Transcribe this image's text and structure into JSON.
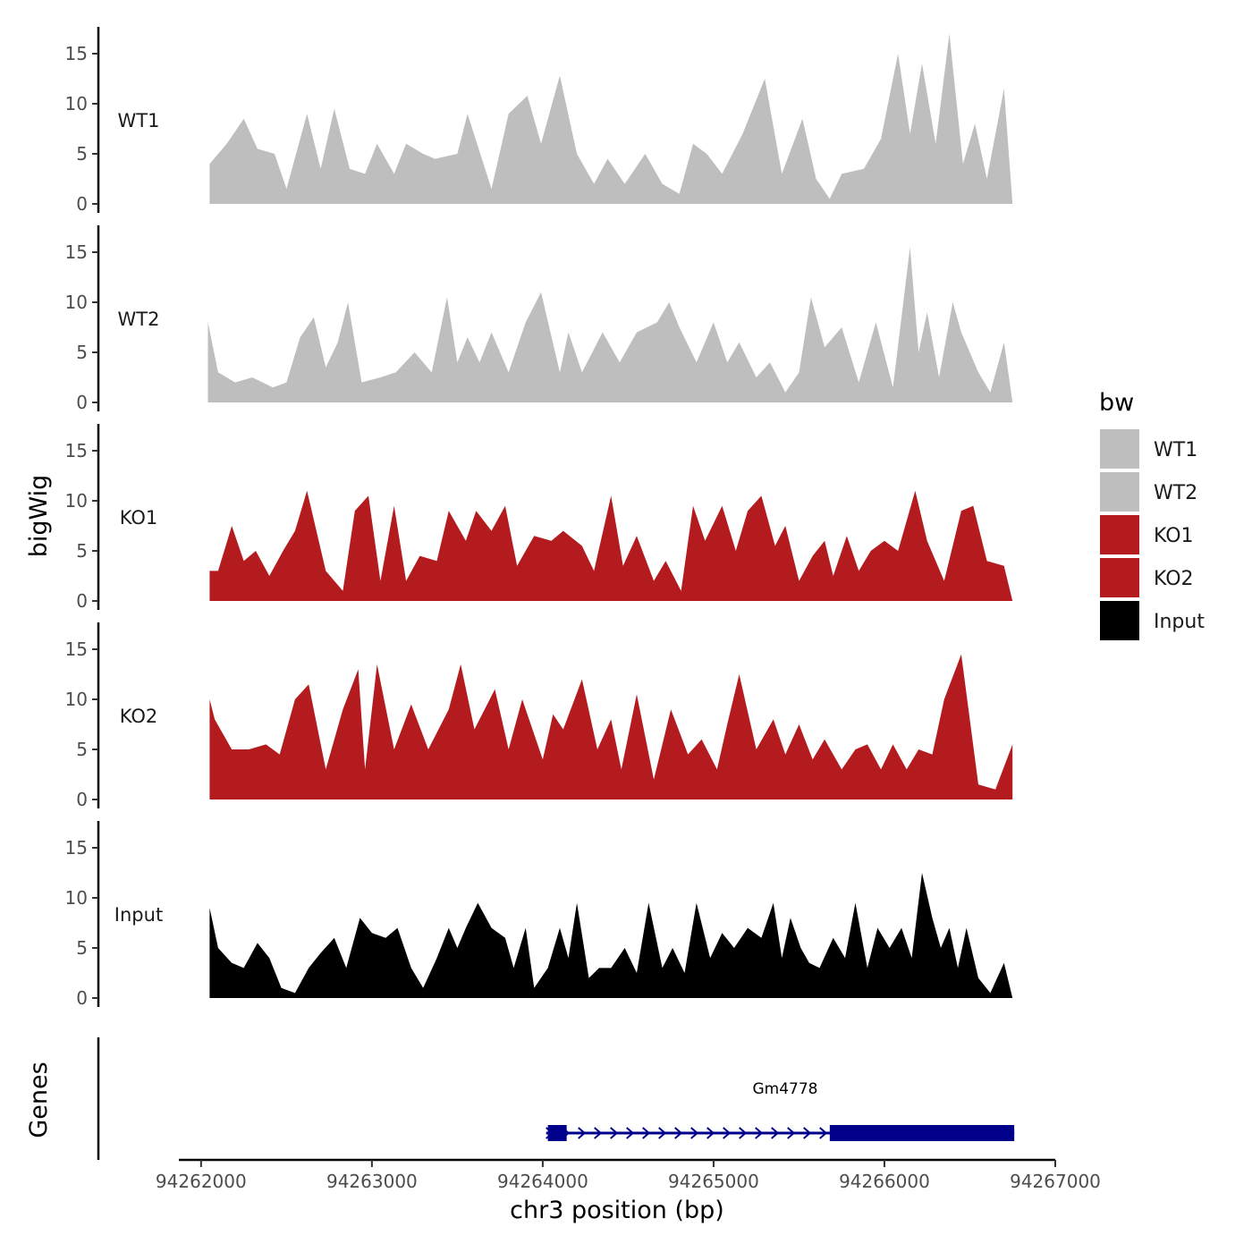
{
  "chart_data": {
    "type": "area",
    "title": "",
    "xlabel": "chr3 position (bp)",
    "ylabel": "bigWig",
    "genes_label": "Genes",
    "xlim": [
      94261870,
      94267000
    ],
    "x_ticks": [
      94262000,
      94263000,
      94264000,
      94265000,
      94266000,
      94267000
    ],
    "x_tick_labels": [
      "94262000",
      "94263000",
      "94264000",
      "94265000",
      "94266000",
      "94267000"
    ],
    "ylim": [
      0,
      17.5
    ],
    "y_ticks": [
      0,
      5,
      10,
      15
    ],
    "y_tick_labels": [
      "0",
      "5",
      "10",
      "15"
    ],
    "legend": {
      "title": "bw",
      "position": "right",
      "entries": [
        {
          "label": "WT1",
          "color": "#bebebe"
        },
        {
          "label": "WT2",
          "color": "#bebebe"
        },
        {
          "label": "KO1",
          "color": "#b31b1f"
        },
        {
          "label": "KO2",
          "color": "#b31b1f"
        },
        {
          "label": "Input",
          "color": "#000000"
        }
      ]
    },
    "series": [
      {
        "name": "WT1",
        "color": "#bebebe",
        "x": [
          94262050,
          94262150,
          94262250,
          94262330,
          94262430,
          94262500,
          94262620,
          94262700,
          94262780,
          94262870,
          94262960,
          94263030,
          94263130,
          94263200,
          94263300,
          94263370,
          94263500,
          94263560,
          94263700,
          94263800,
          94263910,
          94263990,
          94264100,
          94264200,
          94264300,
          94264380,
          94264480,
          94264600,
          94264700,
          94264800,
          94264880,
          94264960,
          94265050,
          94265170,
          94265300,
          94265400,
          94265520,
          94265600,
          94265680,
          94265750,
          94265880,
          94265980,
          94266080,
          94266150,
          94266220,
          94266300,
          94266380,
          94266460,
          94266530,
          94266600,
          94266700,
          94266750
        ],
        "values": [
          4,
          6,
          8.5,
          5.5,
          5,
          1.5,
          9,
          3.5,
          9.5,
          3.5,
          3,
          6,
          3,
          6,
          5,
          4.5,
          5,
          9,
          1.5,
          9,
          10.8,
          6,
          12.8,
          5,
          2,
          4.5,
          2,
          5,
          2,
          1,
          6,
          5,
          3,
          7,
          12.5,
          3,
          8.5,
          2.5,
          0.5,
          3,
          3.5,
          6.5,
          15,
          7,
          14,
          6,
          17,
          4,
          8,
          2.5,
          11.5,
          0
        ]
      },
      {
        "name": "WT2",
        "color": "#bebebe",
        "x": [
          94262040,
          94262100,
          94262200,
          94262300,
          94262420,
          94262500,
          94262580,
          94262660,
          94262730,
          94262800,
          94262860,
          94262940,
          94263050,
          94263140,
          94263250,
          94263350,
          94263440,
          94263500,
          94263560,
          94263630,
          94263700,
          94263800,
          94263900,
          94263990,
          94264100,
          94264150,
          94264230,
          94264350,
          94264450,
          94264550,
          94264670,
          94264740,
          94264800,
          94264900,
          94265000,
          94265080,
          94265150,
          94265250,
          94265330,
          94265420,
          94265500,
          94265570,
          94265650,
          94265750,
          94265850,
          94265950,
          94266050,
          94266150,
          94266200,
          94266250,
          94266320,
          94266400,
          94266450,
          94266550,
          94266620,
          94266700,
          94266750
        ],
        "values": [
          8,
          3,
          2,
          2.5,
          1.5,
          2,
          6.5,
          8.5,
          3.5,
          6,
          10,
          2,
          2.5,
          3,
          5,
          3,
          10.5,
          4,
          6.5,
          4,
          7,
          3,
          8,
          11,
          3,
          7,
          3,
          7,
          4,
          7,
          8,
          10,
          7.5,
          4,
          8,
          4,
          6,
          2.5,
          4,
          1,
          3,
          10.5,
          5.5,
          7.5,
          2,
          8,
          1.5,
          15.5,
          5,
          9,
          2.5,
          10,
          7,
          3,
          1,
          6,
          0
        ]
      },
      {
        "name": "KO1",
        "color": "#b31b1f",
        "x": [
          94262050,
          94262100,
          94262180,
          94262250,
          94262320,
          94262400,
          94262480,
          94262550,
          94262620,
          94262730,
          94262830,
          94262900,
          94262980,
          94263050,
          94263130,
          94263200,
          94263280,
          94263380,
          94263450,
          94263550,
          94263610,
          94263700,
          94263780,
          94263850,
          94263950,
          94264050,
          94264120,
          94264230,
          94264300,
          94264400,
          94264470,
          94264550,
          94264650,
          94264720,
          94264810,
          94264880,
          94264950,
          94265050,
          94265130,
          94265200,
          94265280,
          94265360,
          94265420,
          94265500,
          94265580,
          94265650,
          94265700,
          94265780,
          94265850,
          94265920,
          94266000,
          94266080,
          94266180,
          94266250,
          94266350,
          94266450,
          94266520,
          94266600,
          94266700,
          94266750
        ],
        "values": [
          3,
          3,
          7.5,
          4,
          5,
          2.5,
          5,
          7,
          11,
          3,
          1,
          9,
          10.5,
          2,
          9.5,
          2,
          4.5,
          4,
          9,
          6,
          9,
          7,
          9.5,
          3.5,
          6.5,
          6,
          7,
          5.5,
          3,
          10.5,
          3.5,
          6.5,
          2,
          4,
          1,
          9.5,
          6,
          9.5,
          5,
          9,
          10.5,
          5.5,
          7.5,
          2,
          4.5,
          6,
          2.5,
          6.5,
          3,
          5,
          6,
          5,
          11,
          6,
          2,
          9,
          9.5,
          4,
          3.5,
          0
        ]
      },
      {
        "name": "KO2",
        "color": "#b31b1f",
        "x": [
          94262050,
          94262080,
          94262180,
          94262280,
          94262380,
          94262460,
          94262550,
          94262630,
          94262730,
          94262830,
          94262920,
          94262960,
          94263030,
          94263130,
          94263230,
          94263330,
          94263450,
          94263520,
          94263600,
          94263720,
          94263800,
          94263880,
          94264000,
          94264060,
          94264120,
          94264230,
          94264320,
          94264400,
          94264460,
          94264550,
          94264650,
          94264750,
          94264850,
          94264930,
          94265020,
          94265080,
          94265150,
          94265250,
          94265350,
          94265420,
          94265500,
          94265580,
          94265650,
          94265750,
          94265830,
          94265900,
          94265980,
          94266050,
          94266130,
          94266200,
          94266280,
          94266350,
          94266450,
          94266550,
          94266650,
          94266750
        ],
        "values": [
          10,
          8,
          5,
          5,
          5.5,
          4.5,
          10,
          11.5,
          3,
          9,
          13,
          3,
          13.5,
          5,
          9.5,
          5,
          9,
          13.5,
          7,
          11,
          5,
          10,
          4,
          8.5,
          7,
          12,
          5,
          8,
          3,
          10.5,
          2,
          9,
          4.5,
          6,
          3,
          7.5,
          12.5,
          5,
          8,
          4.5,
          7.5,
          4,
          6,
          3,
          5,
          5.5,
          3,
          5.5,
          3,
          5,
          4.5,
          10,
          14.5,
          1.5,
          1,
          5.5
        ]
      },
      {
        "name": "Input",
        "color": "#000000",
        "x": [
          94262050,
          94262100,
          94262180,
          94262250,
          94262330,
          94262400,
          94262470,
          94262550,
          94262630,
          94262700,
          94262780,
          94262850,
          94262930,
          94263000,
          94263080,
          94263150,
          94263230,
          94263300,
          94263380,
          94263450,
          94263500,
          94263550,
          94263620,
          94263700,
          94263780,
          94263830,
          94263900,
          94263950,
          94264030,
          94264100,
          94264150,
          94264200,
          94264270,
          94264330,
          94264400,
          94264480,
          94264550,
          94264620,
          94264700,
          94264760,
          94264830,
          94264900,
          94264980,
          94265050,
          94265120,
          94265200,
          94265280,
          94265350,
          94265400,
          94265450,
          94265510,
          94265560,
          94265620,
          94265700,
          94265770,
          94265830,
          94265900,
          94265960,
          94266030,
          94266100,
          94266160,
          94266220,
          94266280,
          94266330,
          94266380,
          94266430,
          94266480,
          94266550,
          94266620,
          94266700,
          94266750
        ],
        "values": [
          9,
          5,
          3.5,
          3,
          5.5,
          4,
          1,
          0.5,
          3,
          4.5,
          6,
          3,
          8,
          6.5,
          6,
          7,
          3,
          1,
          4,
          7,
          5,
          7,
          9.5,
          7,
          6,
          3,
          7,
          1,
          3,
          7,
          4,
          9.5,
          2,
          3,
          3,
          5,
          2.5,
          9.5,
          3,
          5,
          2.5,
          9.5,
          4,
          6.5,
          5,
          7,
          6,
          9.5,
          4,
          8,
          5,
          3.5,
          3,
          6,
          4,
          9.5,
          3,
          7,
          5,
          7,
          4,
          12.5,
          8,
          5,
          7,
          3,
          7,
          2,
          0.5,
          3.5,
          0
        ]
      }
    ],
    "genes": [
      {
        "name": "Gm4778",
        "color": "#00008b",
        "start": 94264020,
        "end": 94266760,
        "strand": "+",
        "exons": [
          [
            94264030,
            94264140
          ],
          [
            94265680,
            94266760
          ]
        ]
      }
    ]
  }
}
